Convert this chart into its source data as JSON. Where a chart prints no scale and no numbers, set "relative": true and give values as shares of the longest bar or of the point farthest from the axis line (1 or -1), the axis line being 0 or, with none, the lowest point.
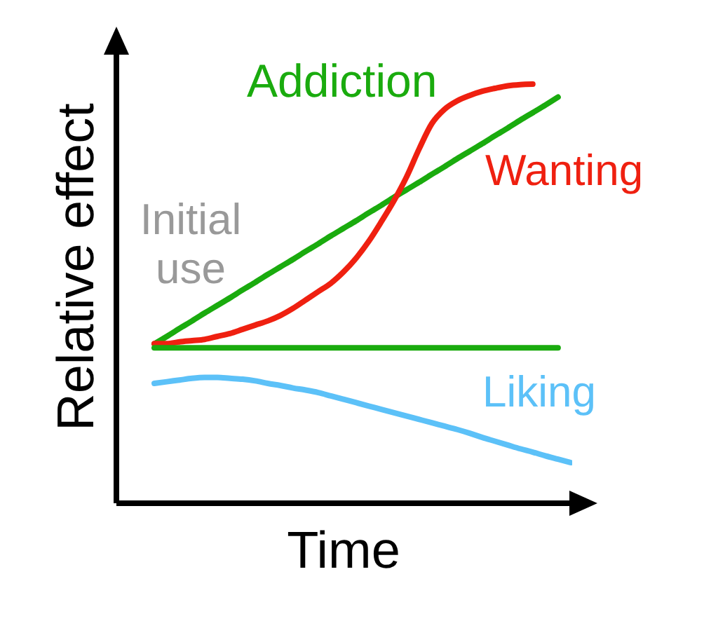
{
  "chart_data": {
    "type": "line",
    "relative": true,
    "xlabel": "Time",
    "ylabel": "Relative effect",
    "categories": [
      null,
      null,
      null,
      null,
      null,
      null,
      null,
      null,
      null,
      null,
      null,
      null,
      null,
      null,
      null,
      null,
      null,
      null,
      null,
      null,
      null,
      null,
      null,
      null,
      null,
      null,
      null,
      null,
      null,
      null,
      null,
      null,
      null,
      null
    ],
    "series": [
      {
        "name": "Addiction",
        "color": "#1aab0e",
        "values": [
          0.38,
          0.398,
          0.417,
          0.435,
          0.454,
          0.472,
          0.49,
          0.509,
          0.527,
          0.546,
          0.564,
          0.582,
          0.601,
          0.619,
          0.638,
          0.656,
          0.674,
          0.693,
          0.711,
          0.73,
          0.748,
          0.766,
          0.785,
          0.803,
          0.822,
          0.84,
          0.858,
          0.877,
          0.895,
          0.914,
          0.932,
          0.95,
          0.969,
          null
        ]
      },
      {
        "name": "Wanting",
        "color": "#ef2010",
        "values": [
          0.381,
          0.381,
          0.385,
          0.388,
          0.391,
          0.398,
          0.405,
          0.415,
          0.425,
          0.435,
          0.448,
          0.465,
          0.485,
          0.505,
          0.525,
          0.552,
          0.585,
          0.625,
          0.672,
          0.722,
          0.779,
          0.846,
          0.906,
          0.94,
          0.96,
          0.973,
          0.983,
          0.99,
          0.996,
          0.999,
          1,
          null,
          null,
          null
        ]
      },
      {
        "color": "#1aab0e",
        "values": [
          0.371,
          0.371,
          0.371,
          0.371,
          0.371,
          0.371,
          0.371,
          0.371,
          0.371,
          0.371,
          0.371,
          0.371,
          0.371,
          0.371,
          0.371,
          0.371,
          0.371,
          0.371,
          0.371,
          0.371,
          0.371,
          0.371,
          0.371,
          0.371,
          0.371,
          0.371,
          0.371,
          0.371,
          0.371,
          0.371,
          0.371,
          0.371,
          0.371,
          null
        ]
      },
      {
        "name": "Liking",
        "color": "#5cc1f8",
        "values": [
          0.286,
          0.29,
          0.294,
          0.298,
          0.3,
          0.3,
          0.298,
          0.296,
          0.292,
          0.286,
          0.281,
          0.275,
          0.27,
          0.264,
          0.256,
          0.248,
          0.24,
          0.232,
          0.224,
          0.216,
          0.208,
          0.2,
          0.192,
          0.184,
          0.176,
          0.167,
          0.157,
          0.148,
          0.139,
          0.13,
          0.122,
          0.113,
          0.105,
          0.097
        ]
      }
    ],
    "annotations": [
      "Initial use"
    ]
  }
}
